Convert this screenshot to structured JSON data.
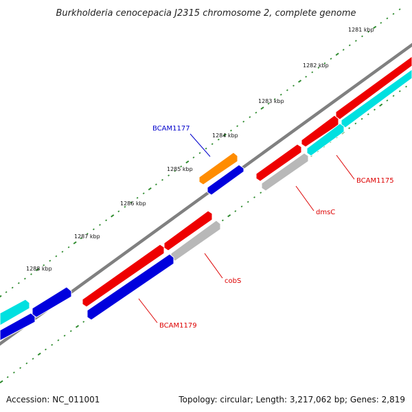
{
  "title": "Burkholderia cenocepacia J2315 chromosome 2, complete genome",
  "ruler": {
    "unit": "kbp",
    "labels": [
      "1281 kbp",
      "1282 kbp",
      "1283 kbp",
      "1284 kbp",
      "1285 kbp",
      "1286 kbp",
      "1287 kbp",
      "1288 kbp"
    ]
  },
  "colors": {
    "backbone": "#808080",
    "tick_dots": "#2e8b2e",
    "forward_gene": "#ee0000",
    "reverse_gene": "#0000dd",
    "cyan_gene": "#00e0e0",
    "grey_gene": "#b8b8b8",
    "orange_gene": "#ff8c00",
    "label_red": "#dd0000",
    "label_blue": "#0000cc"
  },
  "gene_labels": [
    {
      "name": "BCAM1177",
      "color": "#0000cc"
    },
    {
      "name": "BCAM1175",
      "color": "#dd0000"
    },
    {
      "name": "dmsC",
      "color": "#dd0000"
    },
    {
      "name": "cobS",
      "color": "#dd0000"
    },
    {
      "name": "BCAM1179",
      "color": "#dd0000"
    }
  ],
  "footer": {
    "accession": "Accession: NC_011001",
    "summary": "Topology: circular; Length: 3,217,062 bp; Genes: 2,819"
  }
}
